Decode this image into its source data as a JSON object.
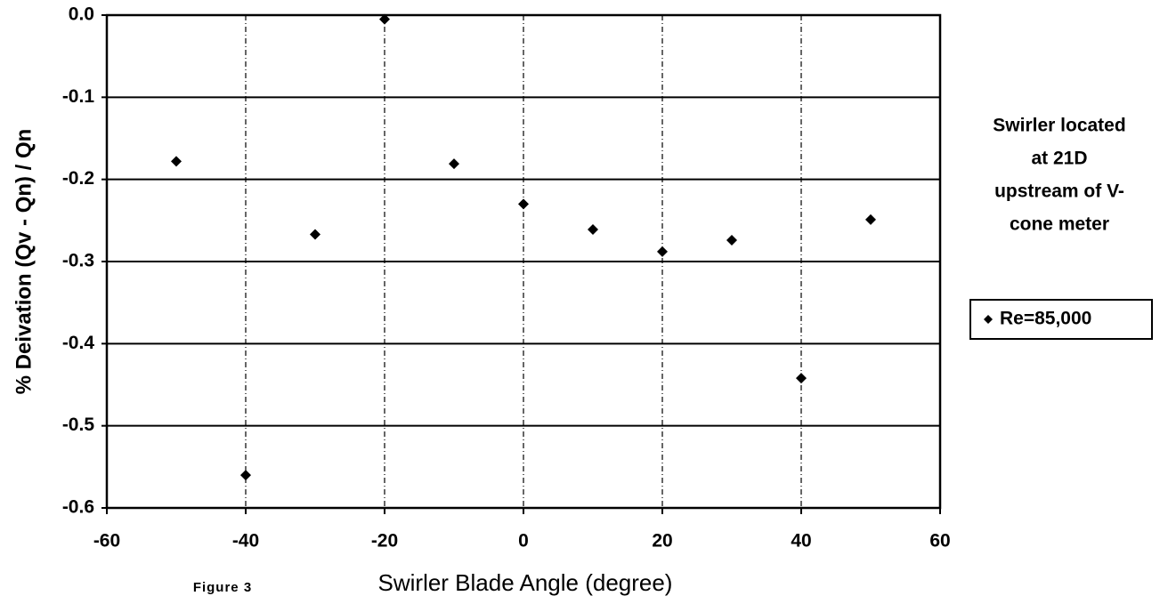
{
  "chart_data": {
    "type": "scatter",
    "y_label": "% Deivation    (Qv - Qn) / Qn",
    "x_label": "Swirler Blade Angle (degree)",
    "figure_label": "Figure 3",
    "annotation": [
      "Swirler located",
      "at 21D",
      "upstream of V-",
      "cone meter"
    ],
    "series": [
      {
        "name": "Re=85,000",
        "color": "#000000",
        "x": [
          -50,
          -40,
          -30,
          -20,
          -10,
          0,
          10,
          20,
          30,
          40,
          50
        ],
        "values": [
          -0.178,
          -0.56,
          -0.267,
          -0.005,
          -0.181,
          -0.23,
          -0.261,
          -0.288,
          -0.274,
          -0.442,
          -0.249
        ]
      }
    ],
    "xlim": [
      -60,
      60
    ],
    "xticks": [
      -60,
      -40,
      -20,
      0,
      20,
      40,
      60
    ],
    "ylim": [
      -0.6,
      0
    ],
    "yticks": [
      {
        "value": 0,
        "label": "0.0"
      },
      -0.1,
      -0.2,
      -0.3,
      -0.4,
      -0.5,
      -0.6
    ],
    "grid": true,
    "legend": "right"
  }
}
